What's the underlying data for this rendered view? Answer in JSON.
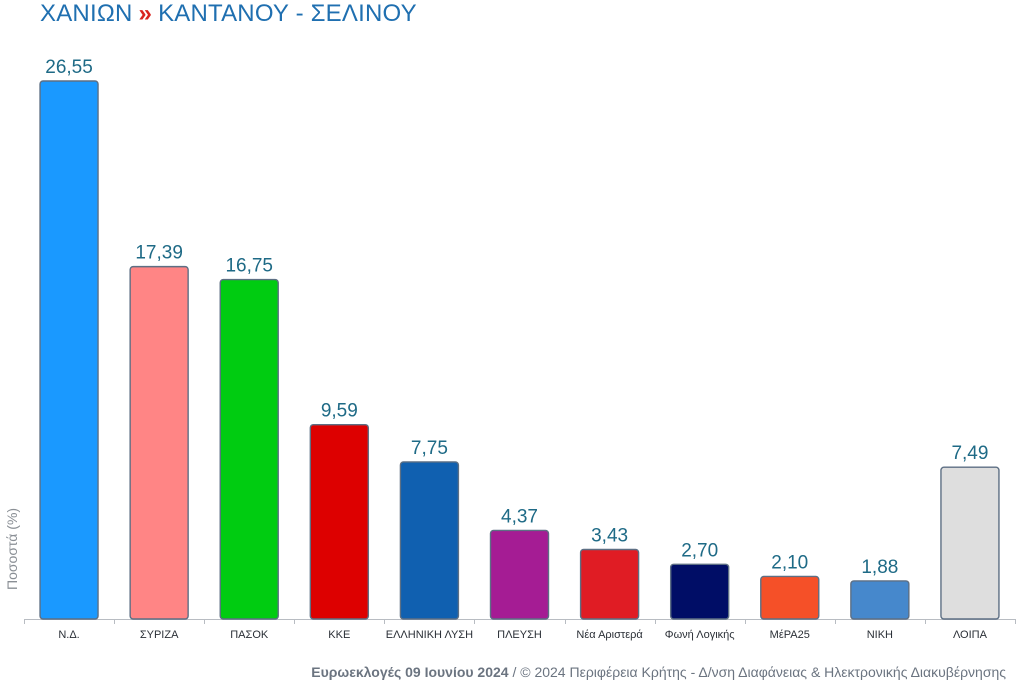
{
  "header": {
    "region": "ΧΑΝΙΩΝ",
    "separator": "»",
    "district": "ΚΑΝΤΑΝΟΥ - ΣΕΛΙΝΟΥ"
  },
  "footer": {
    "election": "Ευρωεκλογές 09 Ιουνίου 2024",
    "credit": " / © 2024 Περιφέρεια Κρήτης - Δ/νση Διαφάνειας & Ηλεκτρονικής Διακυβέρνησης"
  },
  "chart_data": {
    "type": "bar",
    "ylabel": "Ποσοστά (%)",
    "ylim": [
      0,
      26.55
    ],
    "grid": false,
    "categories": [
      "Ν.Δ.",
      "ΣΥΡΙΖΑ",
      "ΠΑΣΟΚ",
      "ΚΚΕ",
      "ΕΛΛΗΝΙΚΗ ΛΥΣΗ",
      "ΠΛΕΥΣΗ",
      "Νέα Αριστερά",
      "Φωνή Λογικής",
      "ΜέΡΑ25",
      "ΝΙΚΗ",
      "ΛΟΙΠΑ"
    ],
    "value_labels": [
      "26,55",
      "17,39",
      "16,75",
      "9,59",
      "7,75",
      "4,37",
      "3,43",
      "2,70",
      "2,10",
      "1,88",
      "7,49"
    ],
    "values": [
      26.55,
      17.39,
      16.75,
      9.59,
      7.75,
      4.37,
      3.43,
      2.7,
      2.1,
      1.88,
      7.49
    ],
    "colors": [
      "#1a99ff",
      "#ff8585",
      "#00cc11",
      "#dd0000",
      "#1060b0",
      "#a51c94",
      "#e01c24",
      "#000d66",
      "#f55028",
      "#4688cc",
      "#dedede"
    ]
  }
}
